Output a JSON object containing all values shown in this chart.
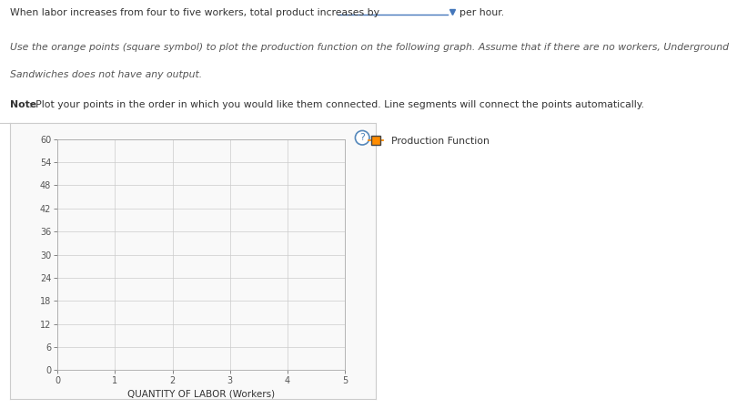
{
  "text_line1": "When labor increases from four to five workers, total product increases by",
  "text_line1_end": "per hour.",
  "text_line2": "Use the orange points (square symbol) to plot the production function on the following graph. Assume that if there are no workers, Underground",
  "text_line3": "Sandwiches does not have any output.",
  "text_bold": "Note",
  "text_note_rest": ": Plot your points in the order in which you would like them connected. Line segments will connect the points automatically.",
  "xlabel": "QUANTITY OF LABOR (Workers)",
  "yticks": [
    0,
    6,
    12,
    18,
    24,
    30,
    36,
    42,
    48,
    54,
    60
  ],
  "xticks": [
    0,
    1,
    2,
    3,
    4,
    5
  ],
  "xlim": [
    0,
    5
  ],
  "ylim": [
    0,
    60
  ],
  "legend_label": "Production Function",
  "legend_color": "#FF8C00",
  "grid_color": "#cccccc",
  "background_color": "#ffffff",
  "panel_background": "#f9f9f9",
  "border_color": "#cccccc",
  "question_mark_color": "#5588bb",
  "axis_line_color": "#aaaaaa",
  "blank_line_color": "#4477bb",
  "arrow_color": "#4477bb",
  "text_color": "#333333",
  "italic_text_color": "#555555"
}
